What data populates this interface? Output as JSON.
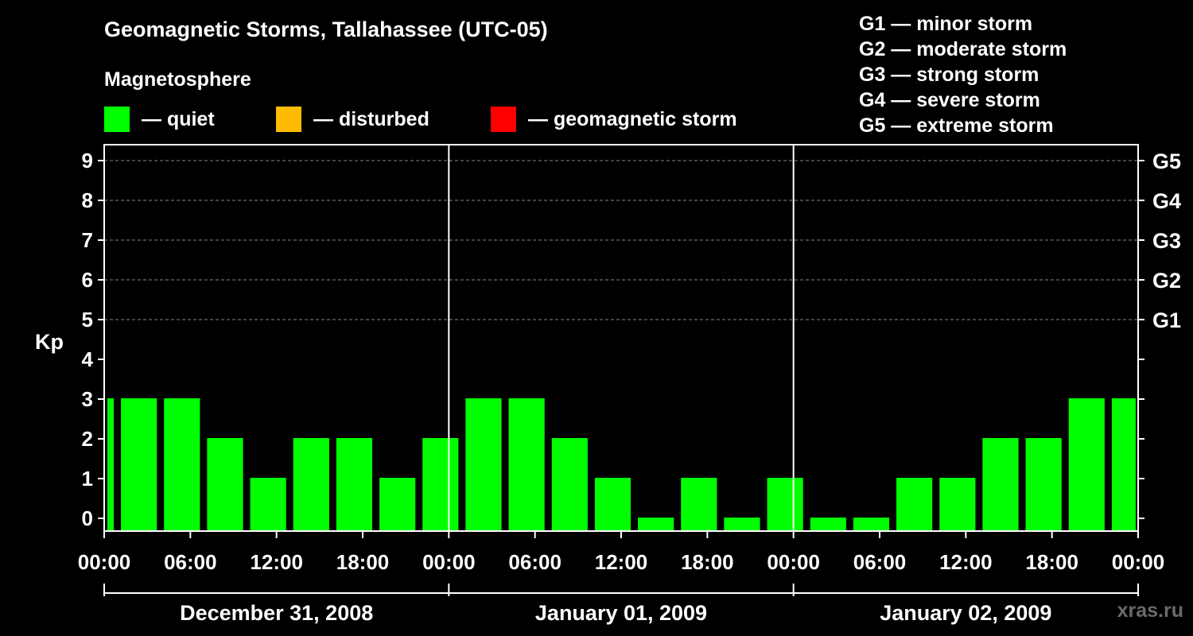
{
  "title": "Geomagnetic Storms, Tallahassee (UTC-05)",
  "subtitle": "Magnetosphere",
  "legend": [
    {
      "label": "— quiet",
      "color": "#00ff00"
    },
    {
      "label": "— disturbed",
      "color": "#ffbb00"
    },
    {
      "label": "— geomagnetic storm",
      "color": "#ff0000"
    }
  ],
  "storm_levels": [
    "G1 — minor storm",
    "G2 — moderate storm",
    "G3 — strong storm",
    "G4 — severe storm",
    "G5 — extreme storm"
  ],
  "watermark": "xras.ru",
  "chart_data": {
    "type": "bar",
    "ylabel": "Kp",
    "ylim": [
      0,
      9
    ],
    "y_ticks": [
      "0",
      "1",
      "2",
      "3",
      "4",
      "5",
      "6",
      "7",
      "8",
      "9"
    ],
    "right_ticks": [
      {
        "kp": 5,
        "label": "G1"
      },
      {
        "kp": 6,
        "label": "G2"
      },
      {
        "kp": 7,
        "label": "G3"
      },
      {
        "kp": 8,
        "label": "G4"
      },
      {
        "kp": 9,
        "label": "G5"
      }
    ],
    "x_tick_labels": [
      "00:00",
      "06:00",
      "12:00",
      "18:00",
      "00:00",
      "06:00",
      "12:00",
      "18:00",
      "00:00",
      "06:00",
      "12:00",
      "18:00",
      "00:00"
    ],
    "x_range_hours": [
      0,
      72
    ],
    "day_labels": [
      "December 31, 2008",
      "January 01, 2009",
      "January 02, 2009"
    ],
    "grid": "horizontal dashed at Kp 5-9",
    "bars": [
      {
        "start_hour": 0,
        "end_hour": 1,
        "kp": 3
      },
      {
        "start_hour": 1,
        "end_hour": 4,
        "kp": 3
      },
      {
        "start_hour": 4,
        "end_hour": 7,
        "kp": 3
      },
      {
        "start_hour": 7,
        "end_hour": 10,
        "kp": 2
      },
      {
        "start_hour": 10,
        "end_hour": 13,
        "kp": 1
      },
      {
        "start_hour": 13,
        "end_hour": 16,
        "kp": 2
      },
      {
        "start_hour": 16,
        "end_hour": 19,
        "kp": 2
      },
      {
        "start_hour": 19,
        "end_hour": 22,
        "kp": 1
      },
      {
        "start_hour": 22,
        "end_hour": 25,
        "kp": 2
      },
      {
        "start_hour": 25,
        "end_hour": 28,
        "kp": 3
      },
      {
        "start_hour": 28,
        "end_hour": 31,
        "kp": 3
      },
      {
        "start_hour": 31,
        "end_hour": 34,
        "kp": 2
      },
      {
        "start_hour": 34,
        "end_hour": 37,
        "kp": 1
      },
      {
        "start_hour": 37,
        "end_hour": 40,
        "kp": 0
      },
      {
        "start_hour": 40,
        "end_hour": 43,
        "kp": 1
      },
      {
        "start_hour": 43,
        "end_hour": 46,
        "kp": 0
      },
      {
        "start_hour": 46,
        "end_hour": 49,
        "kp": 1
      },
      {
        "start_hour": 49,
        "end_hour": 52,
        "kp": 0
      },
      {
        "start_hour": 52,
        "end_hour": 55,
        "kp": 0
      },
      {
        "start_hour": 55,
        "end_hour": 58,
        "kp": 1
      },
      {
        "start_hour": 58,
        "end_hour": 61,
        "kp": 1
      },
      {
        "start_hour": 61,
        "end_hour": 64,
        "kp": 2
      },
      {
        "start_hour": 64,
        "end_hour": 67,
        "kp": 2
      },
      {
        "start_hour": 67,
        "end_hour": 70,
        "kp": 3
      },
      {
        "start_hour": 70,
        "end_hour": 72,
        "kp": 3
      }
    ]
  }
}
